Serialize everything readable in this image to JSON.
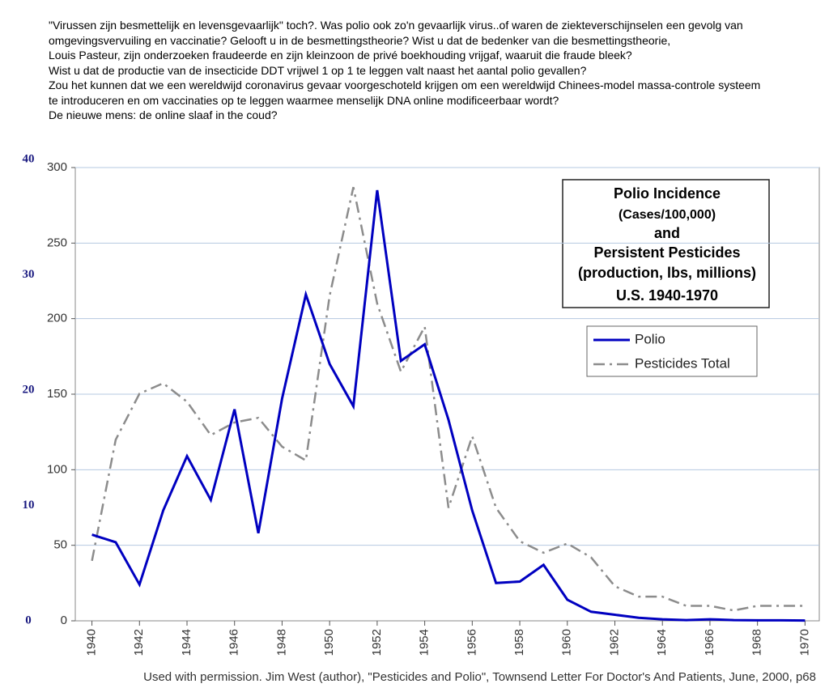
{
  "intro": [
    "\"Virussen zijn besmettelijk en levensgevaarlijk\" toch?. Was polio ook zo'n gevaarlijk virus..of waren de ziekteverschijnselen een gevolg van",
    "omgevingsvervuiling en vaccinatie? Gelooft u in de besmettingstheorie? Wist u dat de bedenker van die besmettingstheorie,",
    "Louis Pasteur, zijn onderzoeken fraudeerde en zijn kleinzoon de privé boekhouding vrijgaf, waaruit die fraude bleek?",
    "Wist u dat de productie van de insecticide DDT vrijwel 1 op 1 te leggen valt naast het aantal polio gevallen?",
    "Zou het kunnen dat we een wereldwijd coronavirus gevaar voorgeschoteld krijgen om een wereldwijd Chinees-model massa-controle systeem",
    "te introduceren en om vaccinaties op te leggen waarmee menselijk DNA online modificeerbaar wordt?",
    "De nieuwe mens: de online slaaf in the coud?"
  ],
  "chart_data": {
    "type": "line",
    "title": [
      "Polio Incidence",
      "(Cases/100,000)",
      "and",
      "Persistent Pesticides",
      "(production, lbs, millions)",
      "U.S.  1940-1970"
    ],
    "source": "Used with permission.  Jim West (author), \"Pesticides and Polio\", Townsend Letter For Doctor's And Patients, June, 2000, p68",
    "x": [
      1940,
      1941,
      1942,
      1943,
      1944,
      1945,
      1946,
      1947,
      1948,
      1949,
      1950,
      1951,
      1952,
      1953,
      1954,
      1955,
      1956,
      1957,
      1958,
      1959,
      1960,
      1961,
      1962,
      1963,
      1964,
      1965,
      1966,
      1967,
      1968,
      1969,
      1970
    ],
    "series": [
      {
        "name": "Polio",
        "color": "#0000c0",
        "dash": "solid",
        "values": [
          57,
          52,
          24,
          73,
          109,
          80,
          140,
          58,
          147,
          216,
          170,
          142,
          285,
          172,
          183,
          133,
          73,
          25,
          26,
          37,
          14,
          6,
          4,
          2,
          1,
          0.5,
          1,
          0.5,
          0.3,
          0.3,
          0.2
        ]
      },
      {
        "name": "Pesticides Total",
        "color": "#8c8c8c",
        "dash": "dashdot",
        "axis": "y2",
        "values": [
          5.2,
          15.7,
          19.7,
          20.6,
          19.0,
          16.1,
          17.2,
          17.6,
          15.1,
          13.9,
          28.2,
          37.6,
          27.5,
          21.6,
          25.5,
          9.8,
          16.0,
          9.8,
          6.9,
          5.9,
          6.7,
          5.5,
          3.0,
          2.1,
          2.1,
          1.3,
          1.3,
          0.9,
          1.3,
          1.3,
          1.3
        ]
      }
    ],
    "xlim": [
      1939.3,
      1970.6
    ],
    "xticks": [
      1940,
      1942,
      1944,
      1946,
      1948,
      1950,
      1952,
      1954,
      1956,
      1958,
      1960,
      1962,
      1964,
      1966,
      1968,
      1970
    ],
    "ylim": [
      0,
      300
    ],
    "yticks": [
      0,
      50,
      100,
      150,
      200,
      250,
      300
    ],
    "y2lim": [
      0,
      39.3
    ],
    "y2ticks": [
      0,
      10,
      20,
      30,
      40
    ],
    "grid": true
  }
}
